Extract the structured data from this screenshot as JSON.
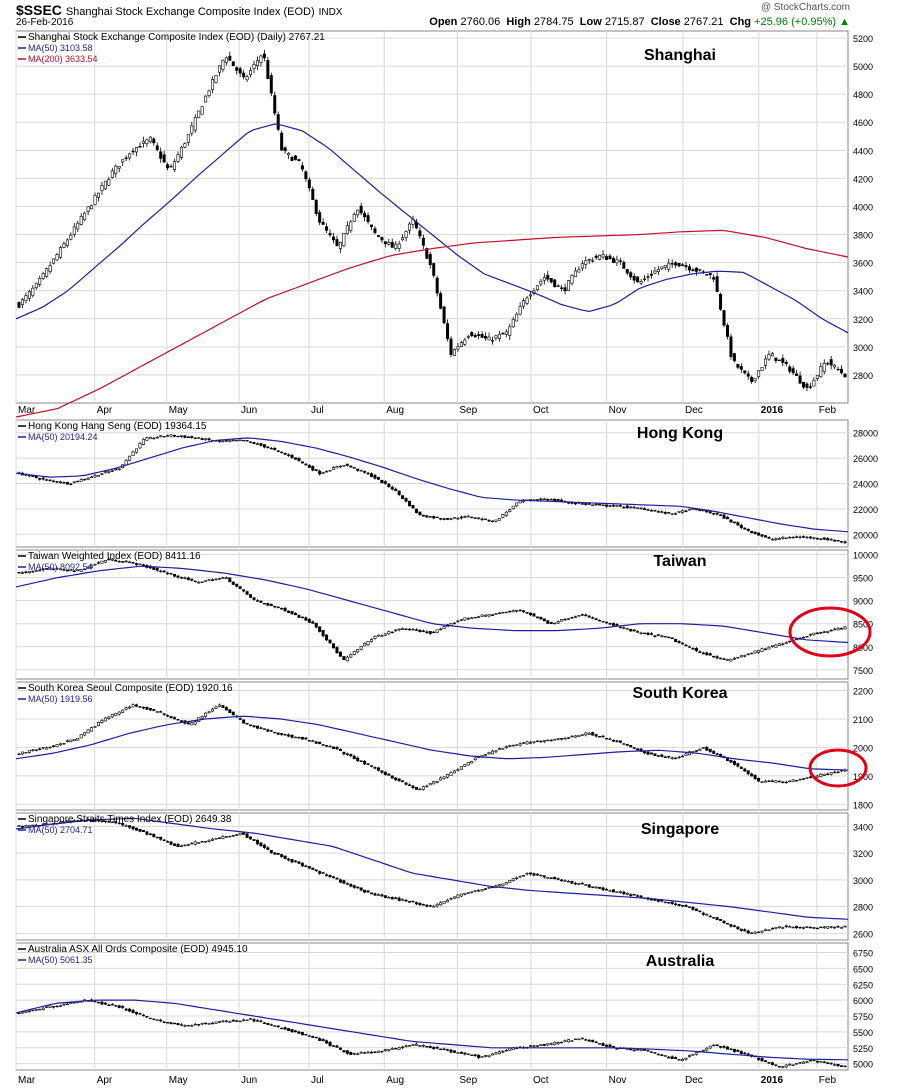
{
  "header": {
    "symbol": "$SSEC",
    "symbol_title": "Shanghai Stock Exchange Composite Index (EOD)",
    "exchange": "INDX",
    "date": "26-Feb-2016",
    "brand": "@ StockCharts.com",
    "open_label": "Open",
    "open": "2760.06",
    "high_label": "High",
    "high": "2784.75",
    "low_label": "Low",
    "low": "2715.87",
    "close_label": "Close",
    "close": "2767.21",
    "chg_label": "Chg",
    "chg": "+25.96 (+0.95%)"
  },
  "colors": {
    "price": "#000000",
    "ma50": "#1f1f9f",
    "ma200": "#c0102c",
    "circle": "#e0001a",
    "grid": "#d9d9d9"
  },
  "x_axis": {
    "months": [
      "Mar",
      "Apr",
      "May",
      "Jun",
      "Jul",
      "Aug",
      "Sep",
      "Oct",
      "Nov",
      "Dec",
      "2016",
      "Feb"
    ]
  },
  "chart_data": [
    {
      "type": "candlestick",
      "panel": "Shanghai",
      "legend": [
        "Shanghai Stock Exchange Composite Index (EOD) (Daily) 2767.21",
        "MA(50) 3103.58",
        "MA(200) 3633.54"
      ],
      "yticks": [
        2800,
        3000,
        3200,
        3400,
        3600,
        3800,
        4000,
        4200,
        4400,
        4600,
        4800,
        5000,
        5200
      ],
      "ylim": [
        2600,
        5250
      ],
      "close": [
        3300,
        3450,
        3650,
        3850,
        4050,
        4250,
        4400,
        4480,
        4250,
        4500,
        4800,
        5080,
        4900,
        5100,
        4400,
        4300,
        3900,
        3700,
        4000,
        3800,
        3700,
        3900,
        3550,
        2950,
        3100,
        3050,
        3100,
        3350,
        3500,
        3400,
        3600,
        3650,
        3600,
        3450,
        3550,
        3600,
        3550,
        3500,
        2900,
        2750,
        2950,
        2850,
        2700,
        2900,
        2800
      ],
      "ma50": [
        3200,
        3280,
        3400,
        3560,
        3720,
        3890,
        4050,
        4220,
        4380,
        4540,
        4590,
        4540,
        4420,
        4260,
        4100,
        3950,
        3800,
        3650,
        3520,
        3450,
        3380,
        3300,
        3250,
        3300,
        3420,
        3480,
        3520,
        3540,
        3530,
        3430,
        3330,
        3200,
        3100
      ],
      "ma200": [
        2500,
        2560,
        2700,
        2860,
        3020,
        3180,
        3340,
        3450,
        3560,
        3650,
        3700,
        3740,
        3760,
        3780,
        3790,
        3800,
        3820,
        3830,
        3780,
        3700,
        3640
      ]
    },
    {
      "type": "candlestick",
      "panel": "Hong Kong",
      "legend": [
        "Hong Kong Hang Seng (EOD) 19364.15",
        "MA(50) 20194.24"
      ],
      "yticks": [
        20000,
        22000,
        24000,
        26000,
        28000
      ],
      "ylim": [
        19000,
        29000
      ],
      "close": [
        24800,
        24300,
        24000,
        24600,
        25200,
        27500,
        27800,
        27600,
        27300,
        27400,
        26800,
        26000,
        24800,
        25500,
        24700,
        23500,
        21500,
        21200,
        21400,
        21000,
        22600,
        22800,
        22500,
        22300,
        22200,
        22000,
        21600,
        22000,
        21500,
        20400,
        19600,
        19800,
        19700,
        19360
      ],
      "ma50": [
        24800,
        24500,
        24600,
        25200,
        26000,
        26800,
        27400,
        27600,
        27300,
        26800,
        26100,
        25300,
        24400,
        23600,
        22900,
        22700,
        22600,
        22500,
        22400,
        22300,
        22200,
        21800,
        21300,
        20800,
        20400,
        20200
      ]
    },
    {
      "type": "candlestick",
      "panel": "Taiwan",
      "legend": [
        "Taiwan Weighted Index (EOD) 8411.16",
        "MA(50) 8092.54"
      ],
      "yticks": [
        7500,
        8000,
        8500,
        9000,
        9500,
        10000
      ],
      "ylim": [
        7300,
        10100
      ],
      "close": [
        9600,
        9700,
        9650,
        9900,
        9800,
        9600,
        9400,
        9500,
        9000,
        8800,
        8500,
        7700,
        8200,
        8400,
        8300,
        8600,
        8700,
        8800,
        8500,
        8700,
        8500,
        8300,
        8200,
        7900,
        7700,
        7900,
        8100,
        8300,
        8411
      ],
      "ma50": [
        9300,
        9500,
        9650,
        9750,
        9700,
        9600,
        9450,
        9250,
        9000,
        8750,
        8500,
        8400,
        8350,
        8350,
        8400,
        8500,
        8500,
        8450,
        8300,
        8150,
        8092
      ]
    },
    {
      "type": "candlestick",
      "panel": "South Korea",
      "legend": [
        "South Korea Seoul Composite (EOD) 1920.16",
        "MA(50) 1919.56"
      ],
      "yticks": [
        1800,
        1900,
        2000,
        2100,
        2200
      ],
      "ylim": [
        1780,
        2230
      ],
      "close": [
        1980,
        2000,
        2030,
        2100,
        2150,
        2120,
        2080,
        2150,
        2080,
        2050,
        2030,
        2000,
        1950,
        1900,
        1850,
        1900,
        1960,
        2000,
        2020,
        2030,
        2050,
        2020,
        1980,
        1960,
        2000,
        1950,
        1880,
        1880,
        1900,
        1920
      ],
      "ma50": [
        1960,
        1980,
        2010,
        2050,
        2080,
        2100,
        2110,
        2100,
        2080,
        2050,
        2020,
        1990,
        1970,
        1960,
        1965,
        1975,
        1985,
        1990,
        1980,
        1960,
        1945,
        1925,
        1920
      ]
    },
    {
      "type": "candlestick",
      "panel": "Singapore",
      "legend": [
        "Singapore Straits Times Index (EOD) 2649.38",
        "MA(50) 2704.71"
      ],
      "yticks": [
        2600,
        2800,
        3000,
        3200,
        3400
      ],
      "ylim": [
        2550,
        3500
      ],
      "close": [
        3400,
        3420,
        3450,
        3430,
        3350,
        3250,
        3300,
        3350,
        3200,
        3100,
        3000,
        2900,
        2850,
        2800,
        2900,
        2950,
        3050,
        3000,
        2950,
        2900,
        2850,
        2800,
        2700,
        2600,
        2650,
        2640,
        2650
      ],
      "ma50": [
        3380,
        3420,
        3450,
        3460,
        3420,
        3380,
        3350,
        3300,
        3250,
        3150,
        3050,
        3000,
        2950,
        2920,
        2900,
        2880,
        2860,
        2830,
        2800,
        2760,
        2720,
        2705
      ]
    },
    {
      "type": "candlestick",
      "panel": "Australia",
      "legend": [
        "Australia ASX All Ords Composite (EOD) 4945.10",
        "MA(50) 5061.35"
      ],
      "yticks": [
        5000,
        5250,
        5500,
        5750,
        6000,
        6250,
        6500,
        6750
      ],
      "ylim": [
        4900,
        6900
      ],
      "close": [
        5800,
        5900,
        6000,
        5900,
        5700,
        5600,
        5650,
        5700,
        5550,
        5400,
        5150,
        5200,
        5300,
        5200,
        5100,
        5250,
        5300,
        5400,
        5250,
        5200,
        5050,
        5300,
        5150,
        4950,
        5050,
        4950
      ],
      "ma50": [
        5800,
        5950,
        6000,
        6000,
        5950,
        5850,
        5750,
        5650,
        5550,
        5450,
        5350,
        5300,
        5250,
        5250,
        5250,
        5250,
        5230,
        5200,
        5150,
        5100,
        5070,
        5061
      ]
    }
  ],
  "panels": [
    {
      "name": "Shanghai",
      "legend1": "Shanghai Stock Exchange Composite Index (EOD) (Daily) 2767.21",
      "legend2": "MA(50) 3103.58",
      "legend3": "MA(200) 3633.54",
      "yticks": [
        "2800",
        "3000",
        "3200",
        "3400",
        "3600",
        "3800",
        "4000",
        "4200",
        "4400",
        "4600",
        "4800",
        "5000",
        "5200"
      ]
    },
    {
      "name": "Hong Kong",
      "legend1": "Hong Kong Hang Seng (EOD) 19364.15",
      "legend2": "MA(50) 20194.24",
      "yticks": [
        "20000",
        "22000",
        "24000",
        "26000",
        "28000"
      ]
    },
    {
      "name": "Taiwan",
      "legend1": "Taiwan Weighted Index (EOD) 8411.16",
      "legend2": "MA(50) 8092.54",
      "yticks": [
        "7500",
        "8000",
        "8500",
        "9000",
        "9500",
        "10000"
      ]
    },
    {
      "name": "South Korea",
      "legend1": "South Korea Seoul Composite (EOD) 1920.16",
      "legend2": "MA(50) 1919.56",
      "yticks": [
        "1800",
        "1900",
        "2000",
        "2100",
        "2200"
      ]
    },
    {
      "name": "Singapore",
      "legend1": "Singapore Straits Times Index (EOD) 2649.38",
      "legend2": "MA(50) 2704.71",
      "yticks": [
        "2600",
        "2800",
        "3000",
        "3200",
        "3400"
      ]
    },
    {
      "name": "Australia",
      "legend1": "Australia ASX All Ords Composite (EOD) 4945.10",
      "legend2": "MA(50) 5061.35",
      "yticks": [
        "5000",
        "5250",
        "5500",
        "5750",
        "6000",
        "6250",
        "6500",
        "6750"
      ]
    }
  ]
}
